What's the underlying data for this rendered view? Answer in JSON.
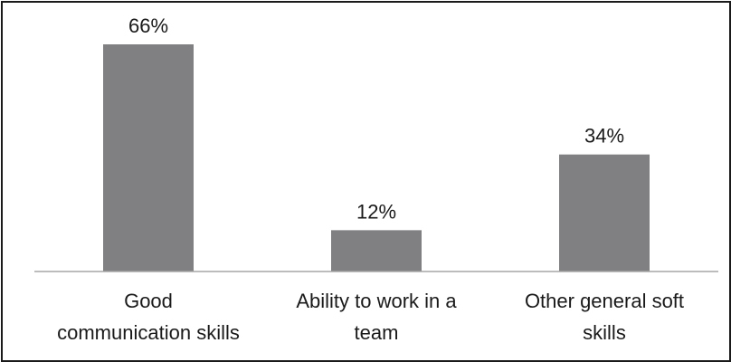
{
  "chart_data": {
    "type": "bar",
    "categories": [
      [
        "Good",
        "communication skills"
      ],
      [
        "Ability to work in a",
        "team"
      ],
      [
        "Other general soft",
        "skills"
      ]
    ],
    "values": [
      66,
      12,
      34
    ],
    "value_labels": [
      "66%",
      "12%",
      "34%"
    ],
    "title": "",
    "xlabel": "",
    "ylabel": "",
    "ylim": [
      0,
      66
    ],
    "grid": false,
    "colors": {
      "bar": "#808083",
      "axis": "#a6a6a6",
      "text": "#1a1a1a"
    }
  }
}
